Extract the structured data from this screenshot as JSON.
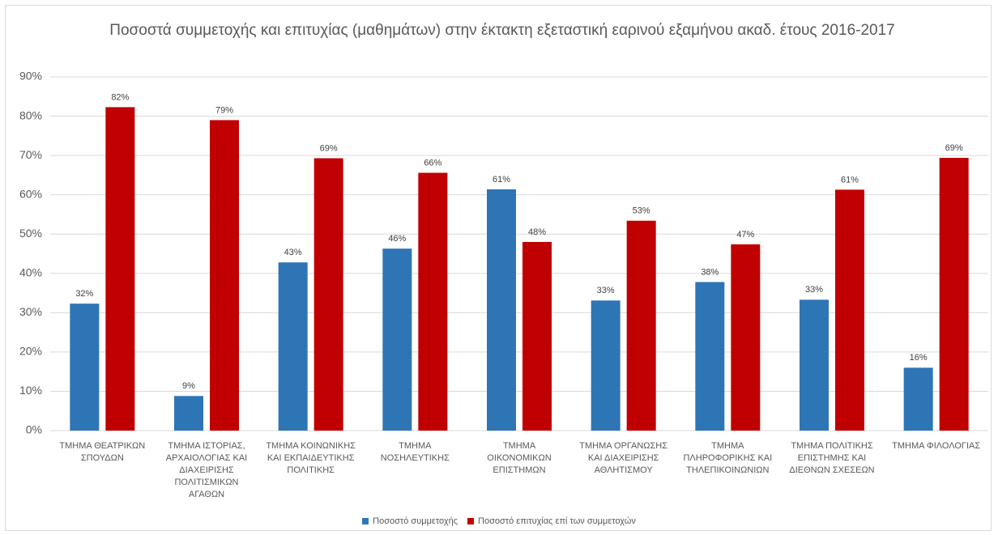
{
  "chart_data": {
    "type": "bar",
    "title": "Ποσοστά συμμετοχής και επιτυχίας (μαθημάτων) στην έκτακτη εξεταστική εαρινού εξαμήνου ακαδ. έτους 2016-2017",
    "categories": [
      "ΤΜΗΜΑ ΘΕΑΤΡΙΚΩΝ ΣΠΟΥΔΩΝ",
      "ΤΜΗΜΑ ΙΣΤΟΡΙΑΣ, ΑΡΧΑΙΟΛΟΓΙΑΣ ΚΑΙ ΔΙΑΧΕΙΡΙΣΗΣ ΠΟΛΙΤΙΣΜΙΚΩΝ ΑΓΑΘΩΝ",
      "ΤΜΗΜΑ ΚΟΙΝΩΝΙΚΗΣ ΚΑΙ ΕΚΠΑΙΔΕΥΤΙΚΗΣ ΠΟΛΙΤΙΚΗΣ",
      "ΤΜΗΜΑ ΝΟΣΗΛΕΥΤΙΚΗΣ",
      "ΤΜΗΜΑ ΟΙΚΟΝΟΜΙΚΩΝ ΕΠΙΣΤΗΜΩΝ",
      "ΤΜΗΜΑ ΟΡΓΑΝΩΣΗΣ ΚΑΙ ΔΙΑΧΕΙΡΙΣΗΣ ΑΘΛΗΤΙΣΜΟΥ",
      "ΤΜΗΜΑ ΠΛΗΡΟΦΟΡΙΚΗΣ ΚΑΙ ΤΗΛΕΠΙΚΟΙΝΩΝΙΩΝ",
      "ΤΜΗΜΑ ΠΟΛΙΤΙΚΗΣ ΕΠΙΣΤΗΜΗΣ ΚΑΙ ΔΙΕΘΝΩΝ ΣΧΕΣΕΩΝ",
      "ΤΜΗΜΑ ΦΙΛΟΛΟΓΙΑΣ"
    ],
    "series": [
      {
        "name": "Ποσοστό συμμετοχής",
        "color": "#2e75b6",
        "values": [
          32.3,
          8.8,
          42.8,
          46.3,
          61.4,
          33.1,
          37.8,
          33.3,
          16.0
        ],
        "value_labels": [
          "32%",
          "9%",
          "43%",
          "46%",
          "61%",
          "33%",
          "38%",
          "33%",
          "16%"
        ]
      },
      {
        "name": "Ποσοστό επιτυχίας επί των συμμετοχών",
        "color": "#c00000",
        "values": [
          82.3,
          79.0,
          69.3,
          65.6,
          48.0,
          53.4,
          47.4,
          61.3,
          69.4
        ],
        "value_labels": [
          "82%",
          "79%",
          "69%",
          "66%",
          "48%",
          "53%",
          "47%",
          "61%",
          "69%"
        ]
      }
    ],
    "ylim": [
      0,
      90
    ],
    "yticks": [
      {
        "value": 0,
        "label": "0%"
      },
      {
        "value": 10,
        "label": "10%"
      },
      {
        "value": 20,
        "label": "20%"
      },
      {
        "value": 30,
        "label": "30%"
      },
      {
        "value": 40,
        "label": "40%"
      },
      {
        "value": 50,
        "label": "50%"
      },
      {
        "value": 60,
        "label": "60%"
      },
      {
        "value": 70,
        "label": "70%"
      },
      {
        "value": 80,
        "label": "80%"
      },
      {
        "value": 90,
        "label": "90%"
      }
    ],
    "grid": true,
    "legend": "bottom"
  }
}
